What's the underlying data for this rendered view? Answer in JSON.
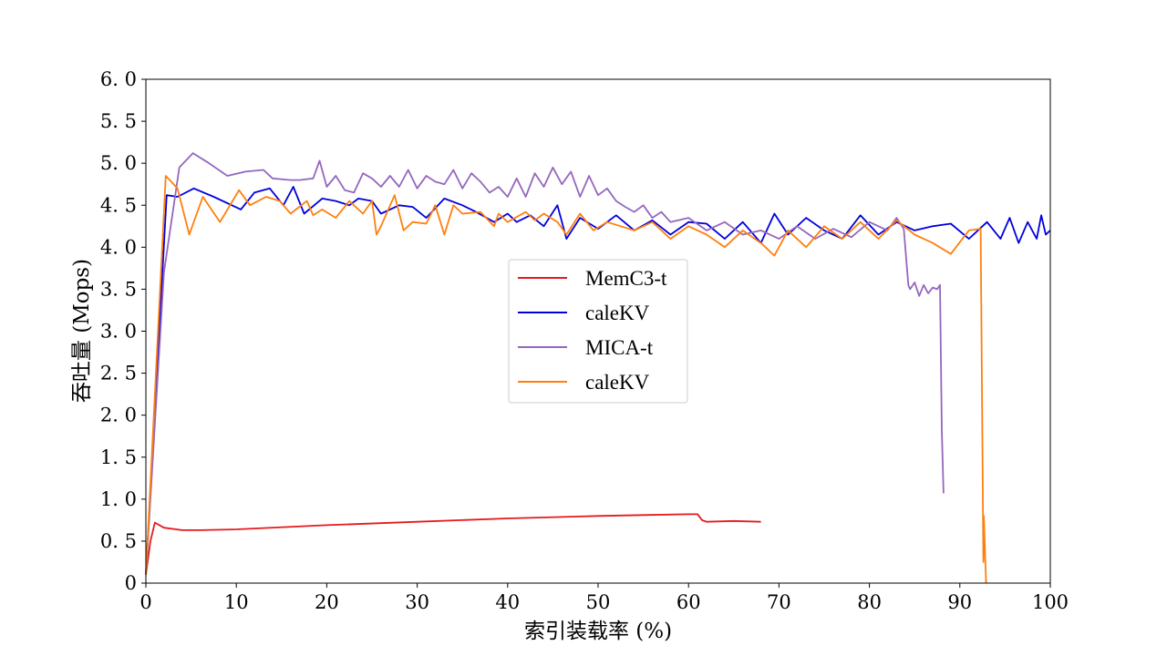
{
  "chart_data": {
    "type": "line",
    "xlabel": "索引装载率 (%)",
    "ylabel": "吞吐量 (Mops)",
    "xlim": [
      0,
      100
    ],
    "ylim": [
      0,
      6.0
    ],
    "x_ticks": [
      "0",
      "10",
      "20",
      "30",
      "40",
      "50",
      "60",
      "70",
      "80",
      "90",
      "100"
    ],
    "y_ticks": [
      "0",
      "0. 5",
      "1. 0",
      "1. 5",
      "2. 0",
      "2. 5",
      "3. 0",
      "3. 5",
      "4. 0",
      "4. 5",
      "5. 0",
      "5. 5",
      "6. 0"
    ],
    "grid": false,
    "legend_position": "center",
    "series": [
      {
        "name": "MemC3-t",
        "color": "#e41a1c",
        "x": [
          0,
          0.5,
          1,
          2,
          4,
          6,
          10,
          20,
          30,
          40,
          50,
          55,
          60,
          61,
          61.5,
          62,
          65,
          68
        ],
        "y": [
          0.1,
          0.5,
          0.72,
          0.66,
          0.63,
          0.63,
          0.64,
          0.69,
          0.73,
          0.77,
          0.8,
          0.81,
          0.82,
          0.82,
          0.75,
          0.73,
          0.74,
          0.73
        ]
      },
      {
        "name": "caleKV",
        "color": "#0000dd",
        "x": [
          0,
          2.3,
          3.5,
          5.3,
          7.5,
          10.5,
          12,
          13.7,
          15.2,
          16.3,
          17.5,
          19.5,
          21,
          22.5,
          23.5,
          25,
          26,
          28,
          29.5,
          31,
          33,
          35,
          36.5,
          38.5,
          40,
          41,
          42.5,
          44,
          45.5,
          46.5,
          48,
          50,
          52,
          54,
          56,
          58,
          60,
          62,
          64,
          66,
          68,
          69.5,
          71,
          73,
          75,
          77,
          79,
          81,
          83,
          85,
          87,
          89,
          91,
          93,
          94.5,
          95.5,
          96.5,
          97.5,
          98.5,
          99,
          99.5,
          100
        ],
        "y": [
          0.1,
          4.62,
          4.6,
          4.7,
          4.6,
          4.45,
          4.65,
          4.7,
          4.5,
          4.72,
          4.4,
          4.58,
          4.55,
          4.5,
          4.58,
          4.55,
          4.4,
          4.5,
          4.48,
          4.35,
          4.58,
          4.5,
          4.42,
          4.3,
          4.4,
          4.3,
          4.38,
          4.25,
          4.5,
          4.1,
          4.35,
          4.22,
          4.38,
          4.2,
          4.32,
          4.15,
          4.3,
          4.28,
          4.1,
          4.3,
          4.05,
          4.4,
          4.15,
          4.35,
          4.2,
          4.1,
          4.38,
          4.15,
          4.3,
          4.2,
          4.25,
          4.28,
          4.1,
          4.3,
          4.1,
          4.35,
          4.05,
          4.3,
          4.1,
          4.38,
          4.15,
          4.2
        ]
      },
      {
        "name": "MICA-t",
        "color": "#9467bd",
        "x": [
          0,
          2,
          3.7,
          5.2,
          7,
          9,
          11,
          13,
          14,
          16,
          17,
          18.5,
          19.2,
          20,
          21,
          22,
          23,
          24,
          25,
          26,
          27,
          28,
          29,
          30,
          31,
          32,
          33,
          34,
          35,
          36,
          37,
          38,
          39,
          40,
          41,
          42,
          43,
          44,
          45,
          46,
          47,
          48,
          49,
          50,
          51,
          52,
          53,
          54,
          55,
          56,
          57,
          58,
          60,
          62,
          64,
          66,
          68,
          70,
          72,
          74,
          76,
          78,
          80,
          82,
          83,
          83.8,
          84,
          84.3,
          84.5,
          85,
          85.5,
          86,
          86.5,
          87,
          87.5,
          87.8,
          88,
          88.2
        ],
        "y": [
          0.1,
          3.7,
          4.95,
          5.12,
          5.0,
          4.85,
          4.9,
          4.92,
          4.82,
          4.8,
          4.8,
          4.82,
          5.03,
          4.72,
          4.85,
          4.68,
          4.65,
          4.88,
          4.82,
          4.72,
          4.85,
          4.72,
          4.92,
          4.7,
          4.85,
          4.78,
          4.75,
          4.92,
          4.7,
          4.88,
          4.78,
          4.65,
          4.72,
          4.6,
          4.82,
          4.6,
          4.88,
          4.72,
          4.95,
          4.75,
          4.9,
          4.6,
          4.85,
          4.62,
          4.7,
          4.55,
          4.48,
          4.42,
          4.5,
          4.35,
          4.42,
          4.3,
          4.35,
          4.2,
          4.3,
          4.15,
          4.2,
          4.1,
          4.25,
          4.1,
          4.22,
          4.12,
          4.3,
          4.2,
          4.35,
          4.22,
          3.95,
          3.55,
          3.5,
          3.58,
          3.42,
          3.55,
          3.45,
          3.52,
          3.5,
          3.55,
          1.82,
          1.07
        ]
      },
      {
        "name": "caleKV",
        "color": "#ff7f0e",
        "x": [
          0,
          2.2,
          3.5,
          4.8,
          6.3,
          8.2,
          10.3,
          11.5,
          13.3,
          14.8,
          16,
          17.8,
          18.5,
          19.5,
          21,
          22.5,
          24,
          25,
          25.5,
          26,
          27.5,
          28.5,
          29.5,
          31,
          32,
          33,
          34,
          35,
          37,
          38.5,
          39,
          40,
          42,
          43,
          44,
          45.5,
          46.5,
          48,
          49.5,
          51,
          52.5,
          54,
          56,
          58,
          60,
          62,
          64,
          66,
          68,
          69.5,
          71,
          73,
          75,
          77,
          79,
          81,
          83,
          85,
          87,
          89,
          91,
          92.3,
          92.6,
          92.65,
          92.8,
          92.9
        ],
        "y": [
          0.1,
          4.85,
          4.7,
          4.15,
          4.6,
          4.3,
          4.68,
          4.5,
          4.6,
          4.55,
          4.4,
          4.55,
          4.38,
          4.45,
          4.35,
          4.55,
          4.4,
          4.55,
          4.15,
          4.25,
          4.62,
          4.2,
          4.3,
          4.28,
          4.5,
          4.15,
          4.5,
          4.4,
          4.42,
          4.25,
          4.4,
          4.3,
          4.42,
          4.32,
          4.4,
          4.3,
          4.15,
          4.4,
          4.2,
          4.3,
          4.25,
          4.2,
          4.3,
          4.1,
          4.25,
          4.15,
          4.0,
          4.2,
          4.05,
          3.9,
          4.2,
          4.0,
          4.25,
          4.1,
          4.3,
          4.1,
          4.32,
          4.15,
          4.05,
          3.92,
          4.2,
          4.22,
          0.25,
          0.8,
          0.3,
          0.0
        ]
      }
    ]
  }
}
